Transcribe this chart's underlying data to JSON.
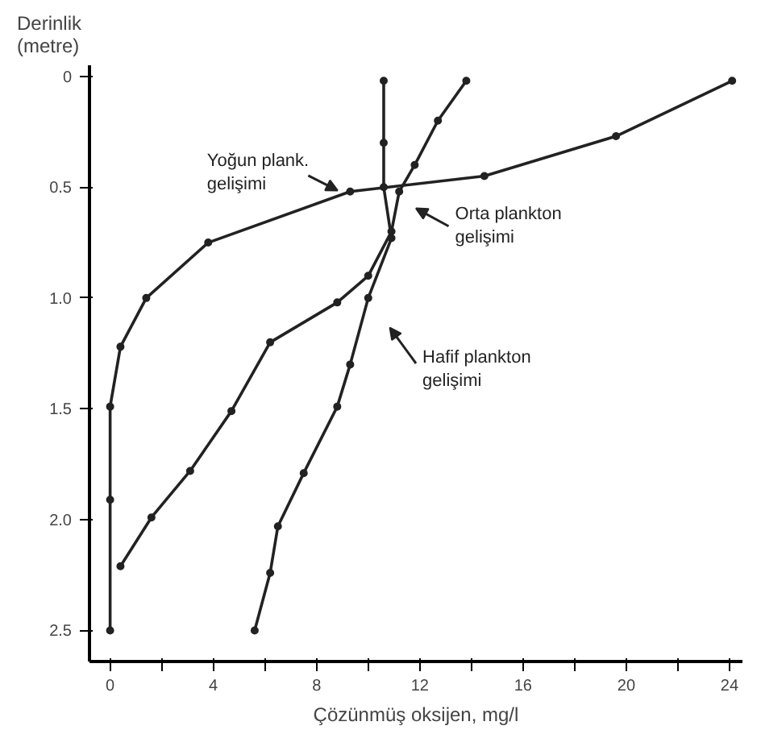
{
  "chart_data": {
    "type": "line",
    "xlabel": "Çözünmüş oksijen, mg/l",
    "ylabel": "Derinlik\n(metre)",
    "marker": "circle",
    "line_style": "solid",
    "grid": false,
    "xlim": [
      -0.8,
      24.5
    ],
    "ylim": [
      2.64,
      -0.05
    ],
    "xticks": [
      0,
      {
        "value": 2,
        "label": null
      },
      4,
      {
        "value": 6,
        "label": null
      },
      8,
      {
        "value": 10,
        "label": null
      },
      12,
      {
        "value": 14,
        "label": null
      },
      16,
      {
        "value": 18,
        "label": null
      },
      20,
      {
        "value": 22,
        "label": null
      },
      24
    ],
    "yticks": [
      0,
      0.5,
      {
        "value": 1,
        "label": "1.0"
      },
      1.5,
      {
        "value": 2,
        "label": "2.0"
      },
      2.5
    ],
    "series": [
      {
        "color": "#222222",
        "x": [
          24.1,
          19.6,
          14.5,
          9.3,
          3.8,
          1.4,
          0.4,
          0,
          0,
          0
        ],
        "values": [
          0.02,
          0.27,
          0.45,
          0.52,
          0.75,
          1.0,
          1.22,
          1.49,
          1.91,
          2.5
        ]
      },
      {
        "color": "#222222",
        "x": [
          13.8,
          12.7,
          11.8,
          11.2,
          10.9,
          10.0,
          8.8,
          6.2,
          4.7,
          3.1,
          1.6,
          0.4
        ],
        "values": [
          0.02,
          0.2,
          0.4,
          0.52,
          0.7,
          0.9,
          1.02,
          1.2,
          1.51,
          1.78,
          1.99,
          2.21
        ]
      },
      {
        "color": "#222222",
        "x": [
          10.6,
          10.6,
          10.6,
          10.9,
          10.0,
          9.3,
          8.8,
          7.5,
          6.5,
          6.2,
          5.6
        ],
        "values": [
          0.02,
          0.3,
          0.5,
          0.73,
          1.0,
          1.3,
          1.49,
          1.79,
          2.03,
          2.24,
          2.5
        ]
      }
    ],
    "annotations": [
      "Yoğun plank.\ngelişimi",
      "Orta plankton\ngelişimi",
      "Hafif plankton\ngelişimi"
    ]
  }
}
